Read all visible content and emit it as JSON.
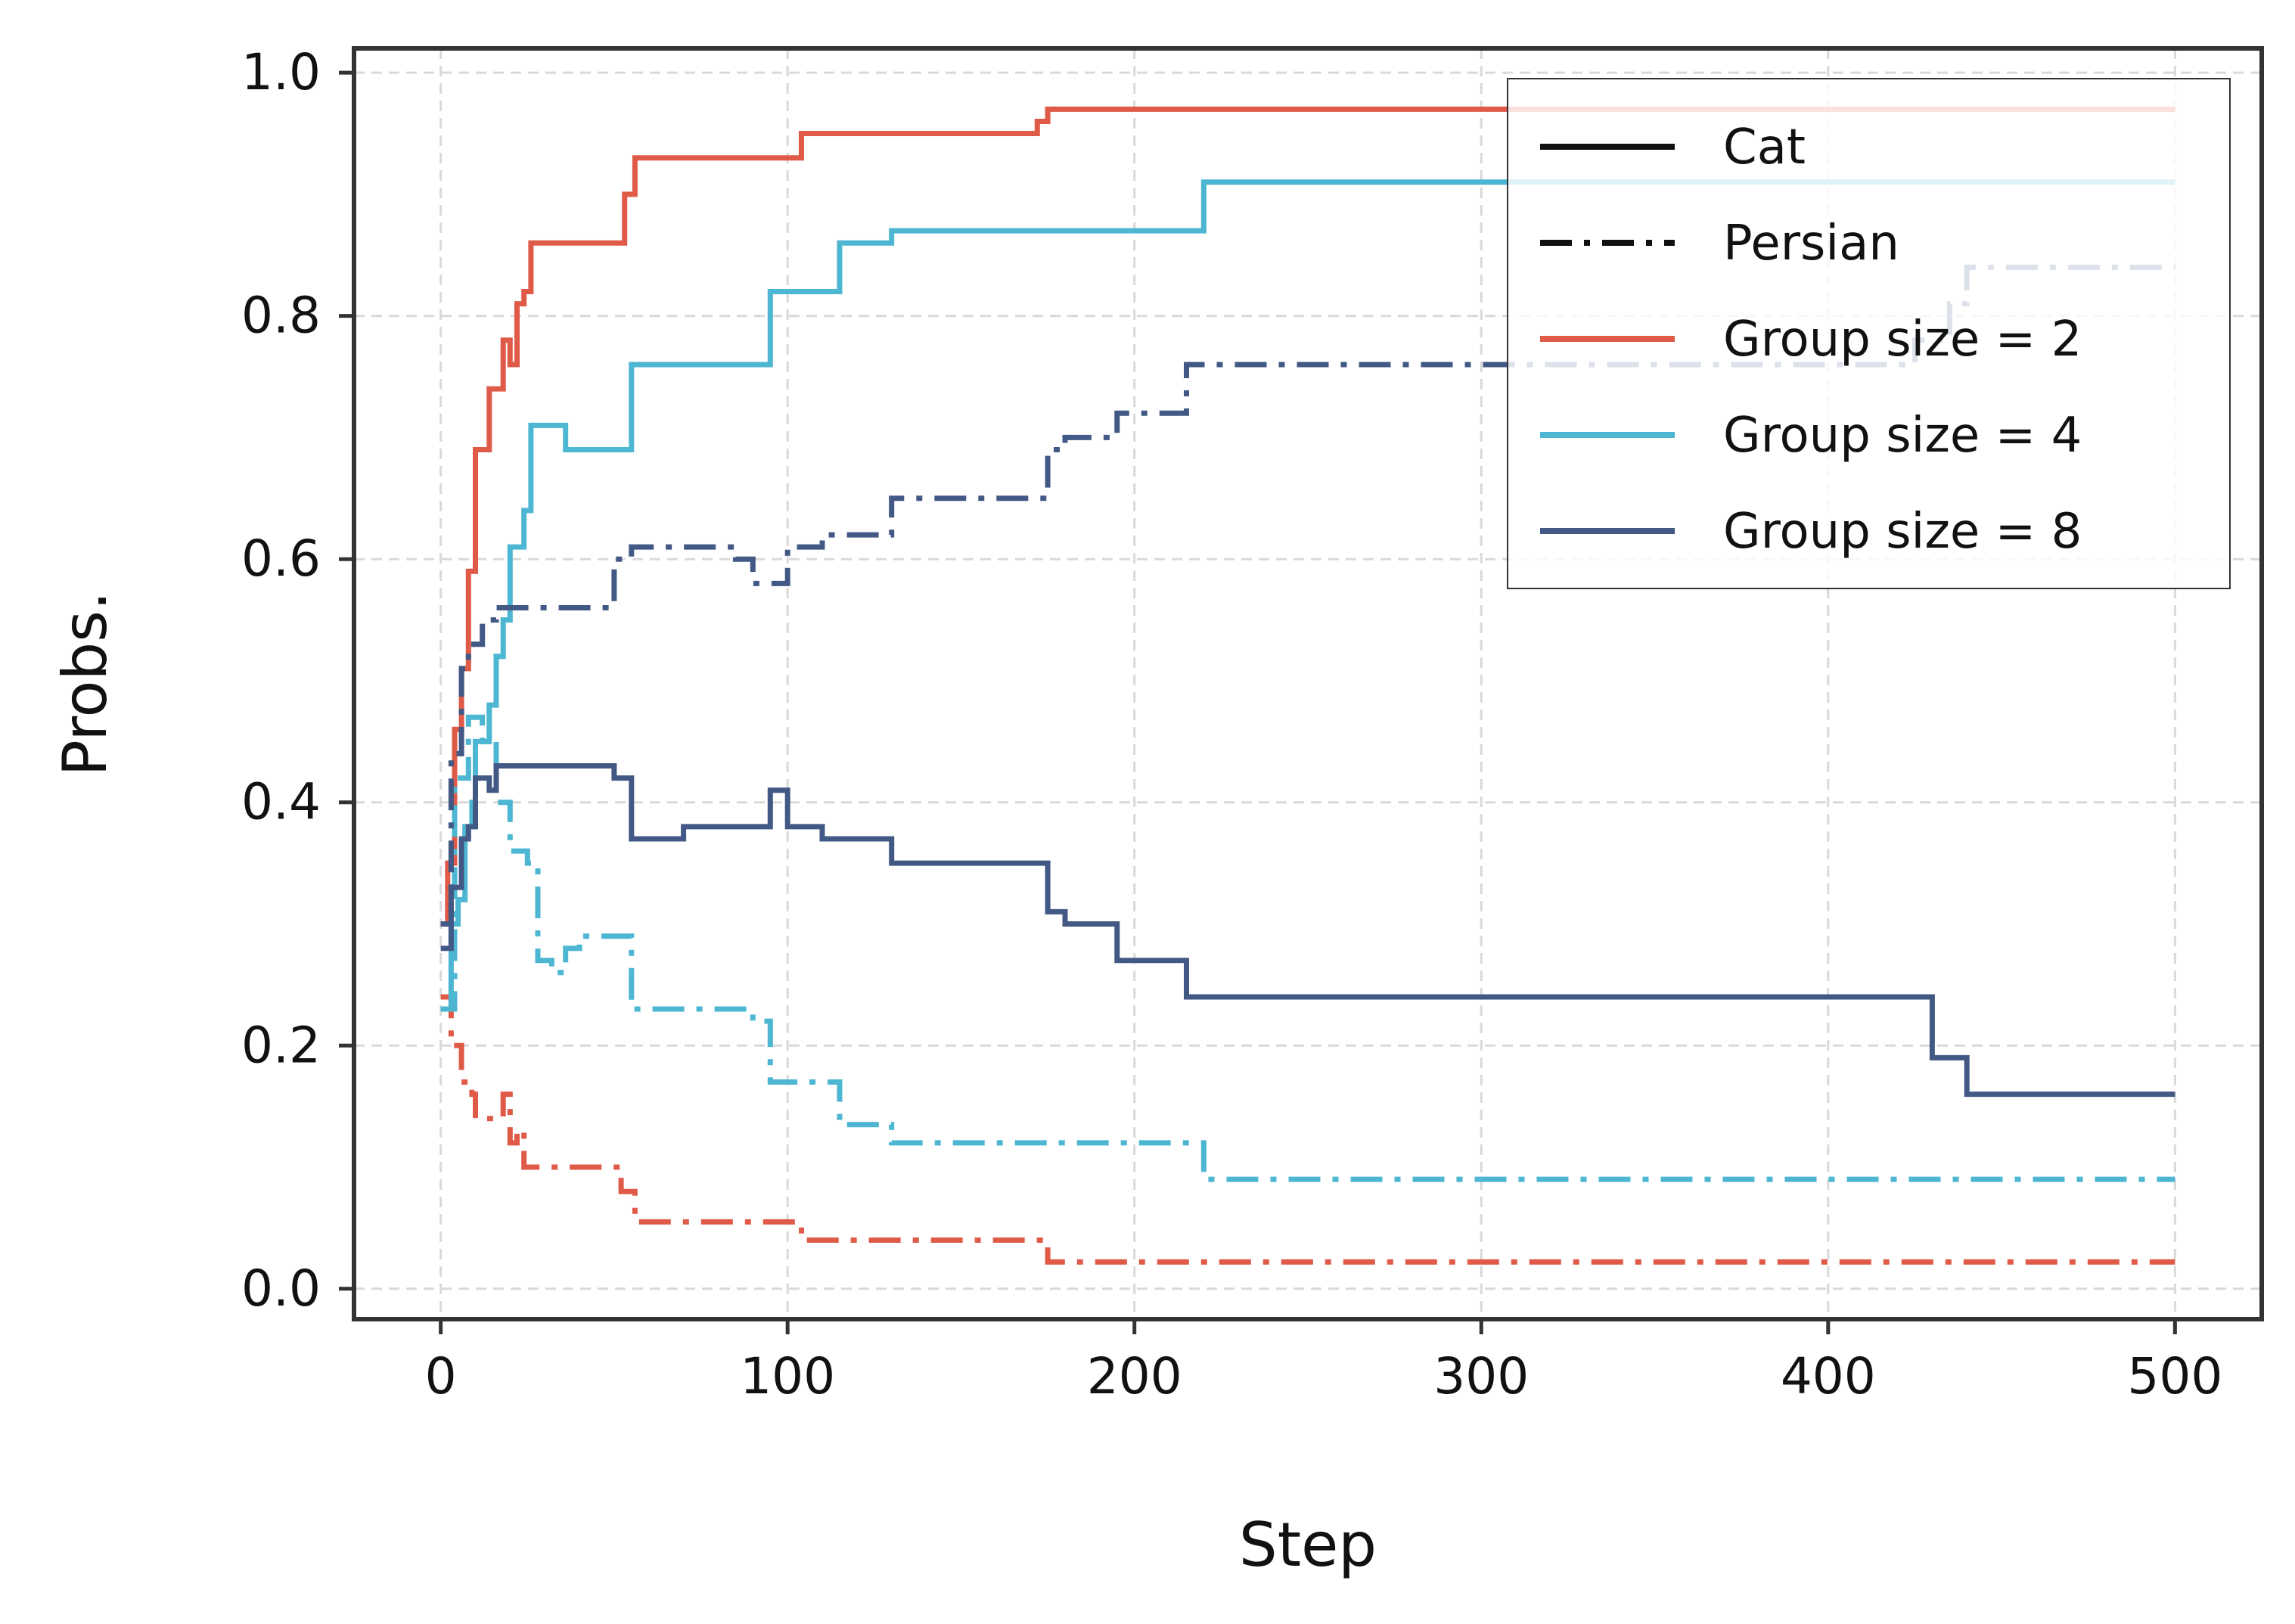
{
  "chart_data": {
    "type": "line",
    "xlabel": "Step",
    "ylabel": "Probs.",
    "xlim": [
      -25,
      525
    ],
    "ylim": [
      -0.025,
      1.02
    ],
    "xticks": [
      0,
      100,
      200,
      300,
      400,
      500
    ],
    "xtick_labels": [
      "0",
      "100",
      "200",
      "300",
      "400",
      "500"
    ],
    "yticks": [
      0.0,
      0.2,
      0.4,
      0.6,
      0.8,
      1.0
    ],
    "ytick_labels": [
      "0.0",
      "0.2",
      "0.4",
      "0.6",
      "0.8",
      "1.0"
    ],
    "grid": true,
    "legend_position": "top-right",
    "legend": [
      {
        "label": "Cat",
        "style": "solid",
        "color": "#111111"
      },
      {
        "label": "Persian",
        "style": "dashdot",
        "color": "#111111"
      },
      {
        "label": "Group size = 2",
        "style": "solid",
        "color": "#E05A48"
      },
      {
        "label": "Group size = 4",
        "style": "solid",
        "color": "#4DB6D2"
      },
      {
        "label": "Group size = 8",
        "style": "solid",
        "color": "#425885"
      }
    ],
    "series": [
      {
        "group": "Group size = 2",
        "line": "Cat",
        "color": "#E05A48",
        "style": "solid",
        "x": [
          0,
          2,
          4,
          6,
          8,
          10,
          12,
          14,
          16,
          18,
          20,
          22,
          24,
          26,
          50,
          53,
          56,
          100,
          104,
          165,
          172,
          175,
          500
        ],
        "y": [
          0.3,
          0.35,
          0.46,
          0.51,
          0.59,
          0.69,
          0.69,
          0.74,
          0.74,
          0.78,
          0.76,
          0.81,
          0.82,
          0.86,
          0.86,
          0.9,
          0.93,
          0.93,
          0.95,
          0.95,
          0.96,
          0.97,
          0.97
        ]
      },
      {
        "group": "Group size = 2",
        "line": "Persian",
        "color": "#E05A48",
        "style": "dashdot",
        "x": [
          0,
          3,
          6,
          9,
          10,
          17,
          18,
          20,
          22,
          24,
          50,
          52,
          56,
          100,
          104,
          165,
          175,
          500
        ],
        "y": [
          0.24,
          0.2,
          0.17,
          0.16,
          0.14,
          0.14,
          0.16,
          0.12,
          0.13,
          0.1,
          0.1,
          0.08,
          0.055,
          0.055,
          0.04,
          0.04,
          0.022,
          0.022
        ]
      },
      {
        "group": "Group size = 4",
        "line": "Cat",
        "color": "#4DB6D2",
        "style": "solid",
        "x": [
          0,
          3,
          5,
          7,
          9,
          10,
          12,
          14,
          16,
          18,
          20,
          22,
          24,
          26,
          28,
          36,
          55,
          95,
          110,
          115,
          130,
          220,
          500
        ],
        "y": [
          0.23,
          0.3,
          0.32,
          0.38,
          0.4,
          0.45,
          0.45,
          0.48,
          0.52,
          0.55,
          0.61,
          0.61,
          0.64,
          0.71,
          0.71,
          0.69,
          0.76,
          0.82,
          0.82,
          0.86,
          0.87,
          0.91,
          0.91
        ]
      },
      {
        "group": "Group size = 4",
        "line": "Persian",
        "color": "#4DB6D2",
        "style": "dashdot",
        "x": [
          0,
          4,
          8,
          12,
          16,
          20,
          25,
          28,
          32,
          36,
          40,
          45,
          50,
          55,
          60,
          75,
          90,
          95,
          100,
          110,
          115,
          125,
          130,
          215,
          220,
          500
        ],
        "y": [
          0.23,
          0.42,
          0.47,
          0.45,
          0.4,
          0.36,
          0.35,
          0.27,
          0.26,
          0.28,
          0.29,
          0.29,
          0.29,
          0.23,
          0.23,
          0.23,
          0.22,
          0.17,
          0.17,
          0.17,
          0.135,
          0.135,
          0.12,
          0.12,
          0.09,
          0.09
        ]
      },
      {
        "group": "Group size = 8",
        "line": "Cat",
        "color": "#425885",
        "style": "solid",
        "x": [
          0,
          3,
          6,
          8,
          10,
          12,
          14,
          16,
          50,
          55,
          70,
          85,
          95,
          100,
          110,
          130,
          170,
          175,
          180,
          195,
          210,
          215,
          425,
          430,
          440,
          500
        ],
        "y": [
          0.28,
          0.33,
          0.37,
          0.38,
          0.42,
          0.42,
          0.41,
          0.43,
          0.42,
          0.37,
          0.38,
          0.38,
          0.41,
          0.38,
          0.37,
          0.35,
          0.35,
          0.31,
          0.3,
          0.27,
          0.27,
          0.24,
          0.24,
          0.19,
          0.16,
          0.16
        ]
      },
      {
        "group": "Group size = 8",
        "line": "Persian",
        "color": "#425885",
        "style": "dashdot",
        "x": [
          0,
          3,
          6,
          8,
          10,
          12,
          14,
          16,
          20,
          45,
          50,
          55,
          70,
          85,
          90,
          95,
          100,
          110,
          120,
          130,
          170,
          175,
          180,
          195,
          215,
          380,
          425,
          435,
          440,
          500
        ],
        "y": [
          0.3,
          0.44,
          0.51,
          0.53,
          0.53,
          0.55,
          0.55,
          0.56,
          0.56,
          0.56,
          0.6,
          0.61,
          0.61,
          0.6,
          0.58,
          0.58,
          0.61,
          0.62,
          0.62,
          0.65,
          0.65,
          0.69,
          0.7,
          0.72,
          0.76,
          0.76,
          0.78,
          0.81,
          0.84,
          0.84
        ]
      }
    ]
  }
}
